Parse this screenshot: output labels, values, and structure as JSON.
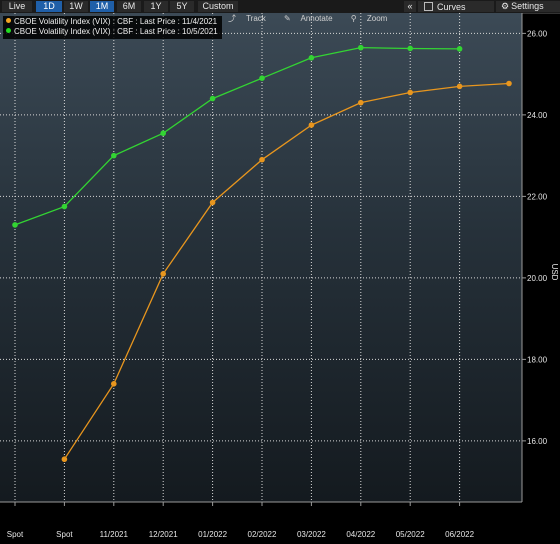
{
  "toolbar": {
    "ranges": [
      "Live",
      "1D",
      "1W",
      "1M",
      "6M",
      "1Y",
      "5Y",
      "Custom"
    ],
    "active": [
      "1D",
      "1M"
    ],
    "collapse_glyph": "«",
    "curves_label": "Curves",
    "settings_label": "Settings"
  },
  "tools": {
    "track": "Track",
    "annotate": "Annotate",
    "zoom": "Zoom"
  },
  "legend": [
    {
      "label": "CBOE Volatility Index (VIX) : CBF : Last Price : 11/4/2021",
      "color": "#f5a623"
    },
    {
      "label": "CBOE Volatility Index (VIX) : CBF : Last Price : 10/5/2021",
      "color": "#22dd22"
    }
  ],
  "chart_data": {
    "type": "line",
    "categories": [
      "Spot",
      "Spot",
      "11/2021",
      "12/2021",
      "01/2022",
      "02/2022",
      "03/2022",
      "04/2022",
      "05/2022",
      "06/2022"
    ],
    "ylabel": "USD",
    "ylim": [
      14.5,
      26.5
    ],
    "yticks": [
      "16.00",
      "18.00",
      "20.00",
      "22.00",
      "24.00",
      "26.00"
    ],
    "grid": true,
    "legend_position": "top-left",
    "series": [
      {
        "name": "CBOE Volatility Index (VIX) : CBF : Last Price : 11/4/2021",
        "color": "#e8961e",
        "x": [
          1,
          2,
          3,
          4,
          5,
          6,
          7,
          8,
          9,
          10
        ],
        "values": [
          15.55,
          17.4,
          20.1,
          21.85,
          22.9,
          23.75,
          24.3,
          24.55,
          24.7,
          24.77
        ]
      },
      {
        "name": "CBOE Volatility Index (VIX) : CBF : Last Price : 10/5/2021",
        "color": "#33d433",
        "x": [
          0,
          1,
          2,
          3,
          4,
          5,
          6,
          7,
          8,
          9
        ],
        "values": [
          21.3,
          21.75,
          23.0,
          23.55,
          24.4,
          24.9,
          25.4,
          25.65,
          25.63,
          25.62
        ]
      }
    ]
  }
}
